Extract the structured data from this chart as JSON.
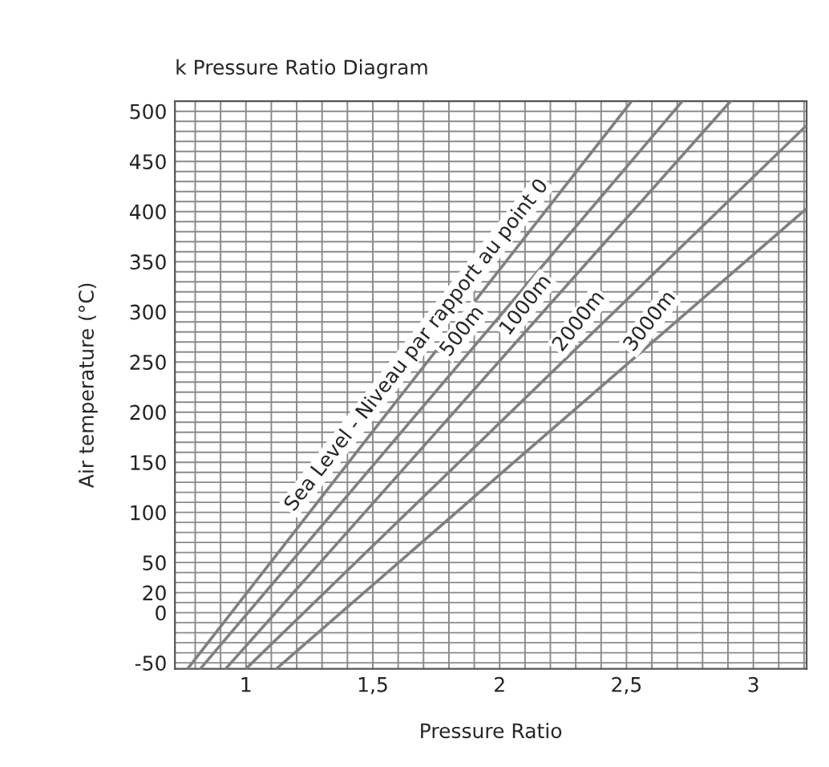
{
  "chart_data": {
    "type": "line",
    "title": "k Pressure Ratio Diagram",
    "xlabel": "Pressure Ratio",
    "ylabel": "Air temperature (°C)",
    "xlim": [
      0.72,
      3.21
    ],
    "ylim": [
      -56,
      510
    ],
    "xticks": [
      {
        "value": 0.8,
        "label": null
      },
      {
        "value": 0.9,
        "label": null
      },
      1,
      {
        "value": 1.1,
        "label": null
      },
      {
        "value": 1.2,
        "label": null
      },
      {
        "value": 1.3,
        "label": null
      },
      {
        "value": 1.4,
        "label": null
      },
      {
        "value": 1.5,
        "label": "1,5"
      },
      {
        "value": 1.6,
        "label": null
      },
      {
        "value": 1.7,
        "label": null
      },
      {
        "value": 1.8,
        "label": null
      },
      {
        "value": 1.9,
        "label": null
      },
      2,
      {
        "value": 2.1,
        "label": null
      },
      {
        "value": 2.2,
        "label": null
      },
      {
        "value": 2.3,
        "label": null
      },
      {
        "value": 2.4,
        "label": null
      },
      {
        "value": 2.5,
        "label": "2,5"
      },
      {
        "value": 2.6,
        "label": null
      },
      {
        "value": 2.7,
        "label": null
      },
      {
        "value": 2.8,
        "label": null
      },
      {
        "value": 2.9,
        "label": null
      },
      3,
      {
        "value": 3.1,
        "label": null
      },
      {
        "value": 3.2,
        "label": null
      }
    ],
    "yticks": [
      -50,
      {
        "value": -40,
        "label": null
      },
      {
        "value": -30,
        "label": null
      },
      {
        "value": -20,
        "label": null
      },
      {
        "value": -10,
        "label": null
      },
      0,
      {
        "value": 10,
        "label": null
      },
      20,
      {
        "value": 30,
        "label": null
      },
      {
        "value": 40,
        "label": null
      },
      50,
      {
        "value": 60,
        "label": null
      },
      {
        "value": 70,
        "label": null
      },
      {
        "value": 80,
        "label": null
      },
      {
        "value": 90,
        "label": null
      },
      100,
      {
        "value": 110,
        "label": null
      },
      {
        "value": 120,
        "label": null
      },
      {
        "value": 130,
        "label": null
      },
      {
        "value": 140,
        "label": null
      },
      150,
      {
        "value": 160,
        "label": null
      },
      {
        "value": 170,
        "label": null
      },
      {
        "value": 180,
        "label": null
      },
      {
        "value": 190,
        "label": null
      },
      200,
      {
        "value": 210,
        "label": null
      },
      {
        "value": 220,
        "label": null
      },
      {
        "value": 230,
        "label": null
      },
      {
        "value": 240,
        "label": null
      },
      250,
      {
        "value": 260,
        "label": null
      },
      {
        "value": 270,
        "label": null
      },
      {
        "value": 280,
        "label": null
      },
      {
        "value": 290,
        "label": null
      },
      300,
      {
        "value": 310,
        "label": null
      },
      {
        "value": 320,
        "label": null
      },
      {
        "value": 330,
        "label": null
      },
      {
        "value": 340,
        "label": null
      },
      350,
      {
        "value": 360,
        "label": null
      },
      {
        "value": 370,
        "label": null
      },
      {
        "value": 380,
        "label": null
      },
      {
        "value": 390,
        "label": null
      },
      400,
      {
        "value": 410,
        "label": null
      },
      {
        "value": 420,
        "label": null
      },
      {
        "value": 430,
        "label": null
      },
      {
        "value": 440,
        "label": null
      },
      450,
      {
        "value": 460,
        "label": null
      },
      {
        "value": 470,
        "label": null
      },
      {
        "value": 480,
        "label": null
      },
      {
        "value": 490,
        "label": null
      },
      500
    ],
    "grid": true,
    "marker": "none",
    "line_style": "solid",
    "series": [
      {
        "color": "#808080",
        "x": [
          0.77,
          1.51,
          2.52
        ],
        "values": [
          -56,
          184,
          510
        ]
      },
      {
        "color": "#808080",
        "x": [
          0.82,
          2.72
        ],
        "values": [
          -56,
          510
        ]
      },
      {
        "color": "#808080",
        "x": [
          0.92,
          2.91
        ],
        "values": [
          -56,
          510
        ]
      },
      {
        "color": "#808080",
        "x": [
          1.0,
          3.21
        ],
        "values": [
          -56,
          486
        ]
      },
      {
        "color": "#808080",
        "x": [
          1.12,
          2.02,
          3.21
        ],
        "values": [
          -56,
          142,
          403
        ]
      }
    ],
    "annotations": [
      {
        "text": "Sea Level - Niveau par rapport au point 0",
        "x": 1.73,
        "y": 256
      },
      {
        "text": "500m",
        "x": 1.91,
        "y": 270
      },
      {
        "text": "1000m",
        "x": 2.16,
        "y": 296
      },
      {
        "text": "2000m",
        "x": 2.37,
        "y": 280
      },
      {
        "text": "3000m",
        "x": 2.65,
        "y": 280
      }
    ]
  }
}
